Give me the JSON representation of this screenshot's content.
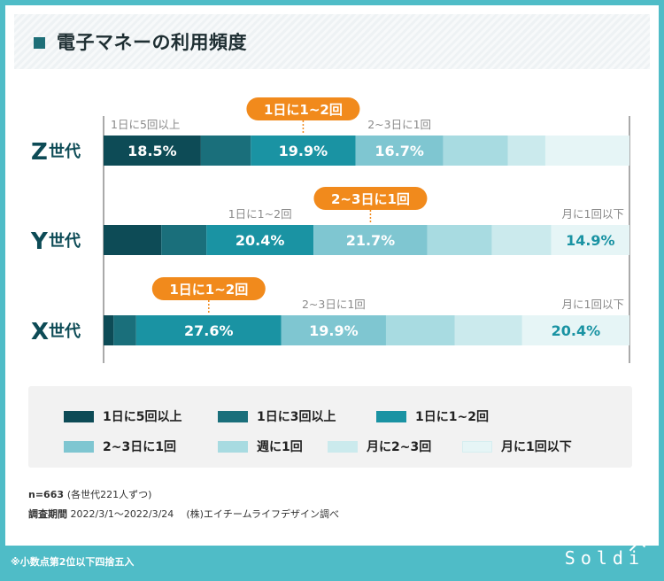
{
  "title": "電子マネーの利用頻度",
  "chart_data": {
    "type": "stacked-bar-horizontal-100",
    "categories_order": [
      "1日に5回以上",
      "1日に3回以上",
      "1日に1~2回",
      "2~3日に1回",
      "週に1回",
      "月に2~3回",
      "月に1回以下"
    ],
    "colors": [
      "#0d4b56",
      "#1a6f7b",
      "#1a93a3",
      "#7fc6d1",
      "#a8dbe1",
      "#cbeaed",
      "#e6f5f6"
    ],
    "label_colors": [
      "#ffffff",
      "#ffffff",
      "#ffffff",
      "#ffffff",
      "#1a93a3",
      "#1a93a3",
      "#1a93a3"
    ],
    "series": [
      {
        "name": "Z世代",
        "name_letter": "Z",
        "name_suffix": "世代",
        "values": [
          18.5,
          9.5,
          19.9,
          16.7,
          12.3,
          7.1,
          16.0
        ],
        "labels": [
          "18.5%",
          "",
          "19.9%",
          "16.7%",
          "",
          "",
          ""
        ],
        "top_labels": [
          {
            "index": 0,
            "text": "1日に5回以上"
          },
          {
            "index": 2,
            "text": "1日に1~2回",
            "highlight": true
          },
          {
            "index": 3,
            "text": "2~3日に1回"
          }
        ]
      },
      {
        "name": "Y世代",
        "name_letter": "Y",
        "name_suffix": "世代",
        "values": [
          11.0,
          8.6,
          20.4,
          21.7,
          12.3,
          11.3,
          14.9
        ],
        "labels": [
          "",
          "",
          "20.4%",
          "21.7%",
          "",
          "",
          "14.9%"
        ],
        "top_labels": [
          {
            "index": 2,
            "text": "1日に1~2回"
          },
          {
            "index": 3,
            "text": "2~3日に1回",
            "highlight": true
          },
          {
            "index": 6,
            "text": "月に1回以下"
          }
        ]
      },
      {
        "name": "X世代",
        "name_letter": "X",
        "name_suffix": "世代",
        "values": [
          1.9,
          4.3,
          27.6,
          19.9,
          13.1,
          12.8,
          20.4
        ],
        "labels": [
          "",
          "",
          "27.6%",
          "19.9%",
          "",
          "",
          "20.4%"
        ],
        "top_labels": [
          {
            "index": 2,
            "text": "1日に1~2回",
            "highlight": true
          },
          {
            "index": 3,
            "text": "2~3日に1回"
          },
          {
            "index": 6,
            "text": "月に1回以下"
          }
        ]
      }
    ],
    "highlight_color": "#f18a1c"
  },
  "legend": [
    {
      "label": "1日に5回以上",
      "color": "#0d4b56"
    },
    {
      "label": "1日に3回以上",
      "color": "#1a6f7b"
    },
    {
      "label": "1日に1~2回",
      "color": "#1a93a3"
    },
    {
      "label": "2~3日に1回",
      "color": "#7fc6d1"
    },
    {
      "label": "週に1回",
      "color": "#a8dbe1"
    },
    {
      "label": "月に2~3回",
      "color": "#cbeaed"
    },
    {
      "label": "月に1回以下",
      "color": "#e6f5f6"
    }
  ],
  "footer": {
    "n_label": "n=663",
    "n_detail": "(各世代221人ずつ)",
    "period_label": "調査期間",
    "period_value": "2022/3/1〜2022/3/24",
    "source": "(株)エイチームライフデザイン調べ"
  },
  "note": "※小数点第2位以下四捨五入",
  "brand": "Soldi"
}
